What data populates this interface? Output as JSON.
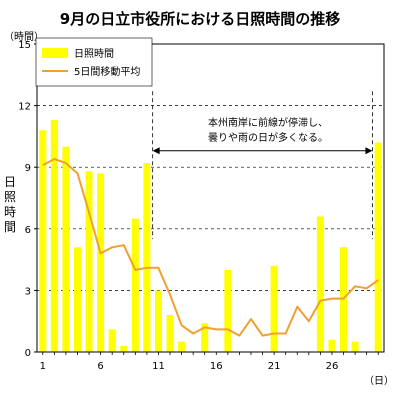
{
  "colors": {
    "bar": "#ffff00",
    "line": "#f0a030",
    "grid": "#000000"
  },
  "chart_data": {
    "type": "bar",
    "title": "9月の日立市役所における日照時間の推移",
    "y_unit": "（時間）",
    "x_unit": "（日）",
    "ylabel": "日照時間",
    "ylim": [
      0,
      15
    ],
    "yticks": [
      0,
      3,
      6,
      9,
      12,
      15
    ],
    "xlim": [
      0.5,
      30.5
    ],
    "xticks": [
      1,
      6,
      11,
      16,
      21,
      26
    ],
    "grid": "horizontal dashed",
    "legend_placement": "top-left",
    "x": [
      1,
      2,
      3,
      4,
      5,
      6,
      7,
      8,
      9,
      10,
      11,
      12,
      13,
      14,
      15,
      16,
      17,
      18,
      19,
      20,
      21,
      22,
      23,
      24,
      25,
      26,
      27,
      28,
      29,
      30
    ],
    "series": [
      {
        "name": "日照時間",
        "type": "bar",
        "values": [
          10.8,
          11.3,
          10.0,
          5.1,
          8.8,
          8.7,
          1.1,
          0.3,
          6.5,
          9.2,
          3.0,
          1.8,
          0.5,
          0.0,
          1.4,
          0.0,
          4.0,
          0.0,
          0.0,
          0.0,
          4.2,
          0.0,
          0.0,
          0.0,
          6.6,
          0.6,
          5.1,
          0.5,
          0.0,
          10.2
        ]
      },
      {
        "name": "5日間移動平均",
        "type": "line",
        "values": [
          9.1,
          9.4,
          9.2,
          8.7,
          6.8,
          4.8,
          5.1,
          5.2,
          4.0,
          4.1,
          4.1,
          2.8,
          1.3,
          0.9,
          1.2,
          1.1,
          1.1,
          0.8,
          1.6,
          0.8,
          0.9,
          0.9,
          2.2,
          1.5,
          2.5,
          2.6,
          2.6,
          3.2,
          3.1,
          3.5
        ]
      }
    ],
    "annotation": {
      "lines": [
        "本州南岸に前線が停滞し、",
        "曇りや雨の日が多くなる。"
      ],
      "from_x": 10,
      "to_x": 29,
      "y": 9.8
    }
  }
}
